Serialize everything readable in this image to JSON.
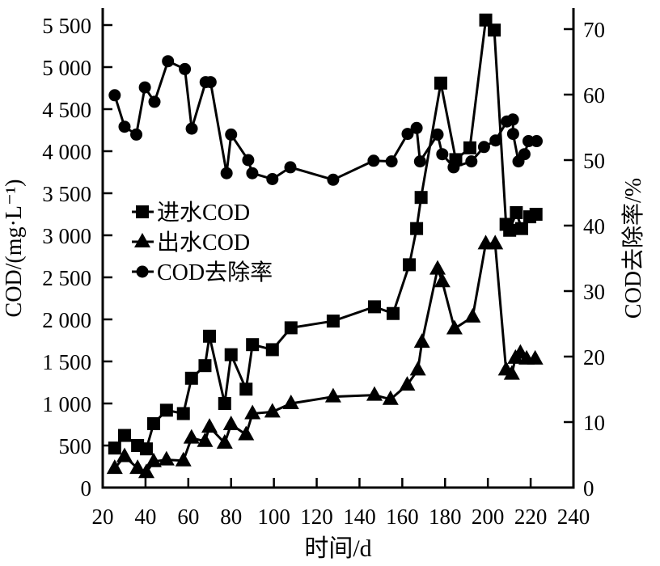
{
  "chart_data": {
    "type": "line",
    "xlabel": "时间/d",
    "ylabel": "COD/(mg·L⁻¹)",
    "y2label": "COD去除率/%",
    "xlim": [
      20,
      240
    ],
    "ylim": [
      0,
      5500
    ],
    "y2lim": [
      0,
      70
    ],
    "xticks": [
      "20",
      "40",
      "60",
      "80",
      "100",
      "120",
      "140",
      "160",
      "180",
      "200",
      "220",
      "240"
    ],
    "yticks": [
      "0",
      "500",
      "1 000",
      "1 500",
      "2 000",
      "2 500",
      "3 000",
      "3 500",
      "4 000",
      "4 500",
      "5 000",
      "5 500"
    ],
    "y2ticks": [
      "0",
      "10",
      "20",
      "30",
      "40",
      "50",
      "60",
      "70"
    ],
    "grid": false,
    "legend_position": "center-left",
    "series": [
      {
        "name": "进水COD",
        "axis": "left",
        "marker": "square",
        "x": [
          25.6,
          30.2,
          36.3,
          40.4,
          43.8,
          49.8,
          57.7,
          61.5,
          67.8,
          69.9,
          77,
          80,
          87,
          90,
          99.3,
          108,
          127.7,
          147,
          155.7,
          163.3,
          166.7,
          168.8,
          178,
          185,
          191.6,
          199,
          203,
          208.5,
          210.2,
          213.3,
          215.8,
          219.6,
          222.5
        ],
        "y": [
          470,
          620,
          500,
          460,
          760,
          920,
          880,
          1300,
          1450,
          1800,
          1000,
          1580,
          1170,
          1700,
          1640,
          1900,
          1980,
          2150,
          2070,
          2650,
          3080,
          3450,
          4810,
          3900,
          4040,
          5560,
          5440,
          3130,
          3060,
          3270,
          3080,
          3220,
          3250
        ]
      },
      {
        "name": "出水COD",
        "axis": "left",
        "marker": "triangle",
        "x": [
          25.6,
          30.2,
          36.3,
          40.4,
          43.8,
          49.8,
          57.7,
          61.5,
          67.8,
          69.9,
          77,
          80,
          87,
          90,
          99.3,
          108,
          127.7,
          147,
          154.5,
          162.3,
          167.3,
          169.2,
          176.5,
          178.7,
          184.4,
          192.9,
          199,
          203.4,
          208.5,
          211.2,
          212.9,
          215.2,
          218.1,
          222.1
        ],
        "y": [
          230,
          370,
          230,
          180,
          310,
          330,
          320,
          590,
          550,
          720,
          530,
          750,
          630,
          880,
          900,
          1000,
          1080,
          1100,
          1050,
          1220,
          1400,
          1730,
          2600,
          2450,
          1890,
          2030,
          2900,
          2900,
          1400,
          1350,
          1540,
          1600,
          1530,
          1530
        ]
      },
      {
        "name": "COD去除率",
        "axis": "right",
        "marker": "circle",
        "x": [
          25.6,
          30.2,
          35.7,
          39.7,
          44.2,
          50.5,
          58.4,
          61.6,
          68.1,
          70.4,
          77.9,
          80,
          88,
          89.9,
          99.3,
          107.7,
          127.7,
          146.6,
          155,
          162.5,
          166.7,
          168.3,
          176.5,
          178.7,
          184,
          192.3,
          198.2,
          203.6,
          208.9,
          211.7,
          211.8,
          214.3,
          217.1,
          219,
          222.8
        ],
        "y": [
          59.9,
          55.1,
          53.9,
          61.1,
          58.9,
          65.1,
          63.9,
          54.8,
          61.9,
          61.9,
          48,
          53.9,
          50,
          48,
          47.1,
          48.9,
          47,
          49.9,
          49.8,
          54,
          54.9,
          49.8,
          53.9,
          50.9,
          48.9,
          49.8,
          52,
          53,
          55.9,
          56.2,
          54,
          49.8,
          50.9,
          52.9,
          52.9
        ]
      }
    ]
  }
}
